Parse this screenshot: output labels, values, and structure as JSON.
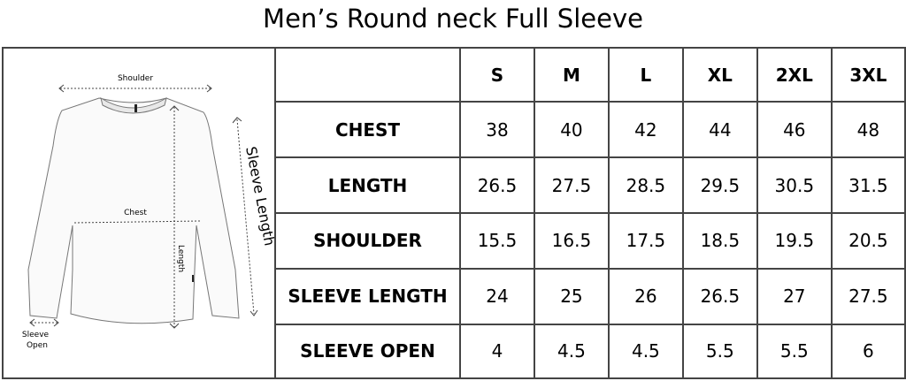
{
  "title": "Men’s Round neck Full Sleeve",
  "diagram": {
    "shoulder": "Shoulder",
    "chest": "Chest",
    "length": "Length",
    "sleeve_length": "Sleeve Length",
    "sleeve_open_1": "Sleeve",
    "sleeve_open_2": "Open"
  },
  "table": {
    "sizes": [
      "S",
      "M",
      "L",
      "XL",
      "2XL",
      "3XL"
    ],
    "rows": [
      {
        "label": "CHEST",
        "values": [
          "38",
          "40",
          "42",
          "44",
          "46",
          "48"
        ]
      },
      {
        "label": "LENGTH",
        "values": [
          "26.5",
          "27.5",
          "28.5",
          "29.5",
          "30.5",
          "31.5"
        ]
      },
      {
        "label": "SHOULDER",
        "values": [
          "15.5",
          "16.5",
          "17.5",
          "18.5",
          "19.5",
          "20.5"
        ]
      },
      {
        "label": "SLEEVE LENGTH",
        "values": [
          "24",
          "25",
          "26",
          "26.5",
          "27",
          "27.5"
        ]
      },
      {
        "label": "SLEEVE OPEN",
        "values": [
          "4",
          "4.5",
          "4.5",
          "5.5",
          "5.5",
          "6"
        ]
      }
    ]
  }
}
